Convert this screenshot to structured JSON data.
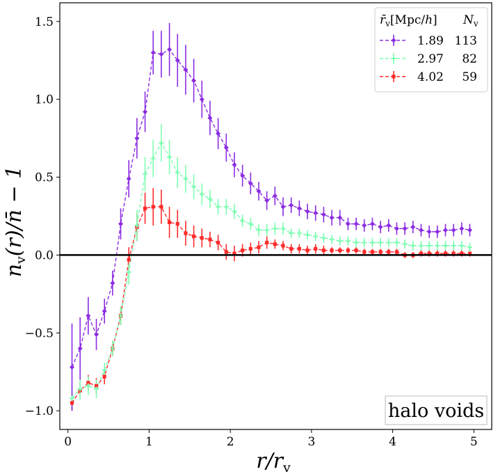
{
  "chart_data": {
    "type": "line",
    "title": "",
    "xlabel": "r/r_v",
    "ylabel": "n_v(r)/n̄ − 1",
    "xlim": [
      -0.1,
      5.22
    ],
    "ylim": [
      -1.12,
      1.62
    ],
    "xticks": [
      0,
      1,
      2,
      3,
      4,
      5
    ],
    "yticks": [
      -1.0,
      -0.5,
      0.0,
      0.5,
      1.0,
      1.5
    ],
    "xtick_labels": [
      "0",
      "1",
      "2",
      "3",
      "4",
      "5"
    ],
    "ytick_labels": [
      "−1.0",
      "−0.5",
      "0.0",
      "0.5",
      "1.0",
      "1.5"
    ],
    "reference_line": {
      "y": 0.0,
      "color": "#000000"
    },
    "legend": {
      "placement": "top-right",
      "header_col1": "r̄v[Mpc/h]",
      "header_col2": "Nv"
    },
    "annotation": "halo voids",
    "x": [
      0.05,
      0.15,
      0.25,
      0.35,
      0.45,
      0.55,
      0.65,
      0.75,
      0.85,
      0.95,
      1.05,
      1.15,
      1.25,
      1.35,
      1.45,
      1.55,
      1.65,
      1.75,
      1.85,
      1.95,
      2.05,
      2.15,
      2.25,
      2.35,
      2.45,
      2.55,
      2.65,
      2.75,
      2.85,
      2.95,
      3.05,
      3.15,
      3.25,
      3.35,
      3.45,
      3.55,
      3.65,
      3.75,
      3.85,
      3.95,
      4.05,
      4.15,
      4.25,
      4.35,
      4.45,
      4.55,
      4.65,
      4.75,
      4.85,
      4.95
    ],
    "series": [
      {
        "name": "1.89",
        "count": "113",
        "color": "#8b2be2",
        "marker": "diamond",
        "values": [
          -0.72,
          -0.6,
          -0.39,
          -0.51,
          -0.36,
          -0.18,
          0.2,
          0.49,
          0.75,
          0.92,
          1.3,
          1.29,
          1.32,
          1.25,
          1.19,
          1.12,
          1.0,
          0.88,
          0.78,
          0.69,
          0.58,
          0.51,
          0.46,
          0.41,
          0.35,
          0.38,
          0.31,
          0.32,
          0.3,
          0.28,
          0.27,
          0.26,
          0.24,
          0.24,
          0.2,
          0.2,
          0.19,
          0.2,
          0.18,
          0.19,
          0.17,
          0.17,
          0.18,
          0.16,
          0.15,
          0.15,
          0.16,
          0.16,
          0.17,
          0.16
        ],
        "errors": [
          0.28,
          0.2,
          0.12,
          0.1,
          0.08,
          0.08,
          0.1,
          0.12,
          0.13,
          0.13,
          0.14,
          0.15,
          0.17,
          0.17,
          0.16,
          0.14,
          0.12,
          0.11,
          0.1,
          0.09,
          0.08,
          0.07,
          0.07,
          0.06,
          0.06,
          0.06,
          0.06,
          0.05,
          0.05,
          0.05,
          0.05,
          0.05,
          0.05,
          0.05,
          0.04,
          0.04,
          0.04,
          0.04,
          0.04,
          0.04,
          0.04,
          0.04,
          0.04,
          0.04,
          0.04,
          0.04,
          0.04,
          0.04,
          0.04,
          0.04
        ]
      },
      {
        "name": "2.97",
        "count": "82",
        "color": "#7effb2",
        "marker": "plus",
        "values": [
          -0.92,
          -0.86,
          -0.84,
          -0.86,
          -0.74,
          -0.6,
          -0.39,
          -0.11,
          0.19,
          0.52,
          0.62,
          0.72,
          0.63,
          0.53,
          0.49,
          0.44,
          0.39,
          0.36,
          0.31,
          0.31,
          0.28,
          0.22,
          0.2,
          0.16,
          0.16,
          0.17,
          0.17,
          0.14,
          0.14,
          0.13,
          0.12,
          0.11,
          0.1,
          0.09,
          0.09,
          0.08,
          0.08,
          0.08,
          0.08,
          0.08,
          0.08,
          0.07,
          0.06,
          0.06,
          0.06,
          0.06,
          0.06,
          0.06,
          0.06,
          0.05
        ],
        "errors": [
          0.08,
          0.07,
          0.06,
          0.06,
          0.05,
          0.05,
          0.06,
          0.08,
          0.1,
          0.11,
          0.12,
          0.12,
          0.11,
          0.1,
          0.09,
          0.08,
          0.07,
          0.06,
          0.05,
          0.05,
          0.05,
          0.04,
          0.04,
          0.04,
          0.04,
          0.04,
          0.04,
          0.03,
          0.03,
          0.03,
          0.03,
          0.03,
          0.03,
          0.03,
          0.03,
          0.03,
          0.03,
          0.03,
          0.03,
          0.03,
          0.03,
          0.03,
          0.03,
          0.03,
          0.03,
          0.03,
          0.03,
          0.03,
          0.03,
          0.03
        ]
      },
      {
        "name": "4.02",
        "count": "59",
        "color": "#ff2a2a",
        "marker": "square",
        "values": [
          -0.95,
          -0.87,
          -0.82,
          -0.84,
          -0.78,
          -0.6,
          -0.39,
          -0.03,
          0.18,
          0.3,
          0.31,
          0.31,
          0.21,
          0.2,
          0.14,
          0.12,
          0.11,
          0.1,
          0.08,
          0.02,
          0.01,
          0.03,
          0.04,
          0.05,
          0.08,
          0.07,
          0.06,
          0.04,
          0.04,
          0.03,
          0.04,
          0.03,
          0.03,
          0.03,
          0.03,
          0.03,
          0.02,
          0.02,
          0.02,
          0.02,
          0.02,
          0.0,
          0.0,
          0.01,
          0.01,
          0.01,
          0.01,
          0.01,
          0.01,
          0.01
        ],
        "errors": [
          0.05,
          0.05,
          0.05,
          0.05,
          0.05,
          0.05,
          0.06,
          0.08,
          0.09,
          0.1,
          0.12,
          0.11,
          0.1,
          0.09,
          0.08,
          0.07,
          0.06,
          0.05,
          0.05,
          0.05,
          0.05,
          0.04,
          0.04,
          0.04,
          0.04,
          0.03,
          0.03,
          0.03,
          0.03,
          0.03,
          0.03,
          0.03,
          0.02,
          0.02,
          0.02,
          0.02,
          0.02,
          0.02,
          0.02,
          0.02,
          0.02,
          0.02,
          0.02,
          0.02,
          0.02,
          0.02,
          0.02,
          0.02,
          0.02,
          0.02
        ]
      }
    ]
  }
}
